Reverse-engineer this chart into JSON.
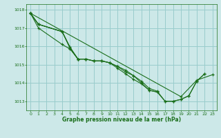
{
  "xlabel": "Graphe pression niveau de la mer (hPa)",
  "xlim": [
    -0.5,
    23.5
  ],
  "ylim": [
    1012.5,
    1018.3
  ],
  "yticks": [
    1013,
    1014,
    1015,
    1016,
    1017,
    1018
  ],
  "xticks": [
    0,
    1,
    2,
    3,
    4,
    5,
    6,
    7,
    8,
    9,
    10,
    11,
    12,
    13,
    14,
    15,
    16,
    17,
    18,
    19,
    20,
    21,
    22,
    23
  ],
  "bg_color": "#cce8e8",
  "grid_color": "#99cccc",
  "line_color": "#1a6e1a",
  "marker": "+",
  "series": [
    [
      1017.8,
      1017.2,
      null,
      null,
      1016.8,
      1015.9,
      1015.3,
      1015.3,
      1015.2,
      1015.2,
      1015.1,
      1014.9,
      1014.6,
      1014.4,
      1014.0,
      1013.6,
      1013.5,
      null,
      null,
      null,
      null,
      null,
      null,
      null
    ],
    [
      1017.8,
      1017.2,
      null,
      null,
      1016.8,
      1015.9,
      1015.3,
      1015.3,
      1015.2,
      1015.2,
      1015.1,
      1014.8,
      1014.5,
      1014.2,
      1013.95,
      1013.6,
      1013.5,
      1013.0,
      1013.0,
      1013.1,
      1013.3,
      1014.1,
      1014.5,
      null
    ],
    [
      1017.8,
      1017.2,
      null,
      null,
      1016.8,
      1015.95,
      1015.3,
      1015.3,
      1015.2,
      1015.2,
      1015.1,
      1014.9,
      1014.7,
      1014.4,
      1014.1,
      1013.7,
      1013.55,
      1013.0,
      1013.0,
      1013.1,
      1013.3,
      1014.1,
      1014.5,
      null
    ],
    [
      1017.8,
      1017.0,
      null,
      null,
      1016.1,
      1015.85,
      1015.3,
      null,
      null,
      null,
      null,
      null,
      null,
      null,
      null,
      null,
      null,
      null,
      null,
      null,
      null,
      null,
      null,
      null
    ],
    [
      1017.8,
      null,
      null,
      null,
      null,
      null,
      null,
      null,
      null,
      null,
      null,
      null,
      null,
      null,
      null,
      null,
      null,
      null,
      null,
      1013.25,
      null,
      1014.15,
      null,
      1014.45
    ]
  ]
}
